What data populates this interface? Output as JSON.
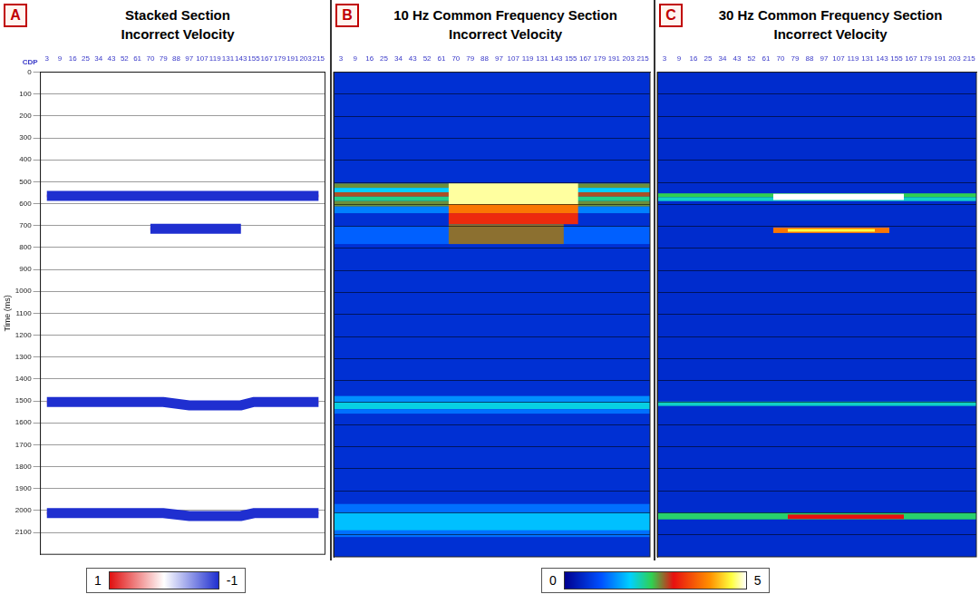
{
  "chart_data": [
    {
      "type": "seismic_section",
      "panel": "A",
      "title": "Stacked Section",
      "subtitle": "Incorrect Velocity",
      "x_label": "CDP",
      "y_label": "Time (ms)",
      "categories": [
        "3",
        "9",
        "16",
        "25",
        "34",
        "43",
        "52",
        "61",
        "70",
        "79",
        "88",
        "97",
        "107",
        "119",
        "131",
        "143",
        "155",
        "167",
        "179",
        "191",
        "203",
        "215"
      ],
      "ylim": [
        0,
        2200
      ],
      "yticks": [
        0,
        100,
        200,
        300,
        400,
        500,
        600,
        700,
        800,
        900,
        1000,
        1100,
        1200,
        1300,
        1400,
        1500,
        1600,
        1700,
        1800,
        1900,
        2000,
        2100
      ],
      "grid": true,
      "tick_labels": true,
      "reflectors": [
        {
          "cdp": [
            "3",
            "215"
          ],
          "time_ms": [
            565,
            565
          ]
        },
        {
          "cdp": [
            "70",
            "143"
          ],
          "time_ms": [
            715,
            715
          ]
        },
        {
          "cdp": [
            "3",
            "79",
            "97",
            "143",
            "155",
            "215"
          ],
          "time_ms": [
            1505,
            1505,
            1520,
            1520,
            1505,
            1505
          ]
        },
        {
          "cdp": [
            "3",
            "79",
            "97",
            "143",
            "155",
            "215"
          ],
          "time_ms": [
            2012,
            2012,
            2025,
            2025,
            2012,
            2012
          ]
        }
      ],
      "colorbar": {
        "range": [
          1,
          -1
        ],
        "ticks": [
          1,
          -1
        ]
      }
    },
    {
      "type": "heatmap",
      "panel": "B",
      "title": "10 Hz Common Frequency Section",
      "subtitle": "Incorrect Velocity",
      "categories": [
        "3",
        "9",
        "16",
        "25",
        "34",
        "43",
        "52",
        "61",
        "70",
        "79",
        "88",
        "97",
        "107",
        "119",
        "131",
        "143",
        "155",
        "167",
        "179",
        "191",
        "203",
        "215"
      ],
      "ylim": [
        0,
        2200
      ],
      "yticks": [
        0,
        100,
        200,
        300,
        400,
        500,
        600,
        700,
        800,
        900,
        1000,
        1100,
        1200,
        1300,
        1400,
        1500,
        1600,
        1700,
        1800,
        1900,
        2000,
        2100
      ],
      "grid": true,
      "tick_labels": "x",
      "background_value": 0.6,
      "cells": [
        {
          "cdp": [
            "3",
            "215"
          ],
          "time_ms": [
            505,
            525
          ],
          "value": 2.6
        },
        {
          "cdp": [
            "3",
            "215"
          ],
          "time_ms": [
            525,
            545
          ],
          "value": 1.8
        },
        {
          "cdp": [
            "3",
            "215"
          ],
          "time_ms": [
            545,
            565
          ],
          "value": 2.8
        },
        {
          "cdp": [
            "3",
            "215"
          ],
          "time_ms": [
            565,
            585
          ],
          "value": 2.2
        },
        {
          "cdp": [
            "3",
            "215"
          ],
          "time_ms": [
            585,
            610
          ],
          "value": 2.6
        },
        {
          "cdp": [
            "3",
            "215"
          ],
          "time_ms": [
            610,
            640
          ],
          "value": 1.3
        },
        {
          "cdp": [
            "3",
            "215"
          ],
          "time_ms": [
            700,
            780
          ],
          "value": 1.1
        },
        {
          "cdp": [
            "70",
            "155"
          ],
          "time_ms": [
            505,
            600
          ],
          "value": 4.8
        },
        {
          "cdp": [
            "70",
            "155"
          ],
          "time_ms": [
            600,
            640
          ],
          "value": 3.8
        },
        {
          "cdp": [
            "70",
            "155"
          ],
          "time_ms": [
            640,
            690
          ],
          "value": 3.2
        },
        {
          "cdp": [
            "70",
            "143"
          ],
          "time_ms": [
            690,
            780
          ],
          "value": 2.7
        },
        {
          "cdp": [
            "3",
            "215"
          ],
          "time_ms": [
            1470,
            1500
          ],
          "value": 1.4
        },
        {
          "cdp": [
            "3",
            "215"
          ],
          "time_ms": [
            1500,
            1530
          ],
          "value": 1.9
        },
        {
          "cdp": [
            "3",
            "215"
          ],
          "time_ms": [
            1530,
            1550
          ],
          "value": 1.2
        },
        {
          "cdp": [
            "3",
            "215"
          ],
          "time_ms": [
            1960,
            2000
          ],
          "value": 1.2
        },
        {
          "cdp": [
            "3",
            "215"
          ],
          "time_ms": [
            2000,
            2080
          ],
          "value": 1.7
        },
        {
          "cdp": [
            "3",
            "215"
          ],
          "time_ms": [
            2080,
            2110
          ],
          "value": 1.2
        }
      ],
      "colorbar": {
        "range": [
          0,
          5
        ],
        "ticks": [
          0,
          5
        ]
      }
    },
    {
      "type": "heatmap",
      "panel": "C",
      "title": "30 Hz Common Frequency Section",
      "subtitle": "Incorrect Velocity",
      "categories": [
        "3",
        "9",
        "16",
        "25",
        "34",
        "43",
        "52",
        "61",
        "70",
        "79",
        "88",
        "97",
        "107",
        "119",
        "131",
        "143",
        "155",
        "167",
        "179",
        "191",
        "203",
        "215"
      ],
      "ylim": [
        0,
        2200
      ],
      "yticks": [
        0,
        100,
        200,
        300,
        400,
        500,
        600,
        700,
        800,
        900,
        1000,
        1100,
        1200,
        1300,
        1400,
        1500,
        1600,
        1700,
        1800,
        1900,
        2000,
        2100
      ],
      "grid": true,
      "tick_labels": "x",
      "background_value": 0.55,
      "cells": [
        {
          "cdp": [
            "3",
            "215"
          ],
          "time_ms": [
            550,
            568
          ],
          "value": 2.4
        },
        {
          "cdp": [
            "3",
            "215"
          ],
          "time_ms": [
            568,
            585
          ],
          "value": 2.0
        },
        {
          "cdp": [
            "70",
            "155"
          ],
          "time_ms": [
            552,
            580
          ],
          "value": 5.0
        },
        {
          "cdp": [
            "70",
            "143"
          ],
          "time_ms": [
            705,
            730
          ],
          "value": 3.8
        },
        {
          "cdp": [
            "79",
            "131"
          ],
          "time_ms": [
            712,
            724
          ],
          "value": 4.6
        },
        {
          "cdp": [
            "3",
            "215"
          ],
          "time_ms": [
            1495,
            1515
          ],
          "value": 2.0
        },
        {
          "cdp": [
            "3",
            "215"
          ],
          "time_ms": [
            2000,
            2030
          ],
          "value": 2.3
        },
        {
          "cdp": [
            "79",
            "155"
          ],
          "time_ms": [
            2008,
            2028
          ],
          "value": 3.0
        }
      ]
    }
  ]
}
